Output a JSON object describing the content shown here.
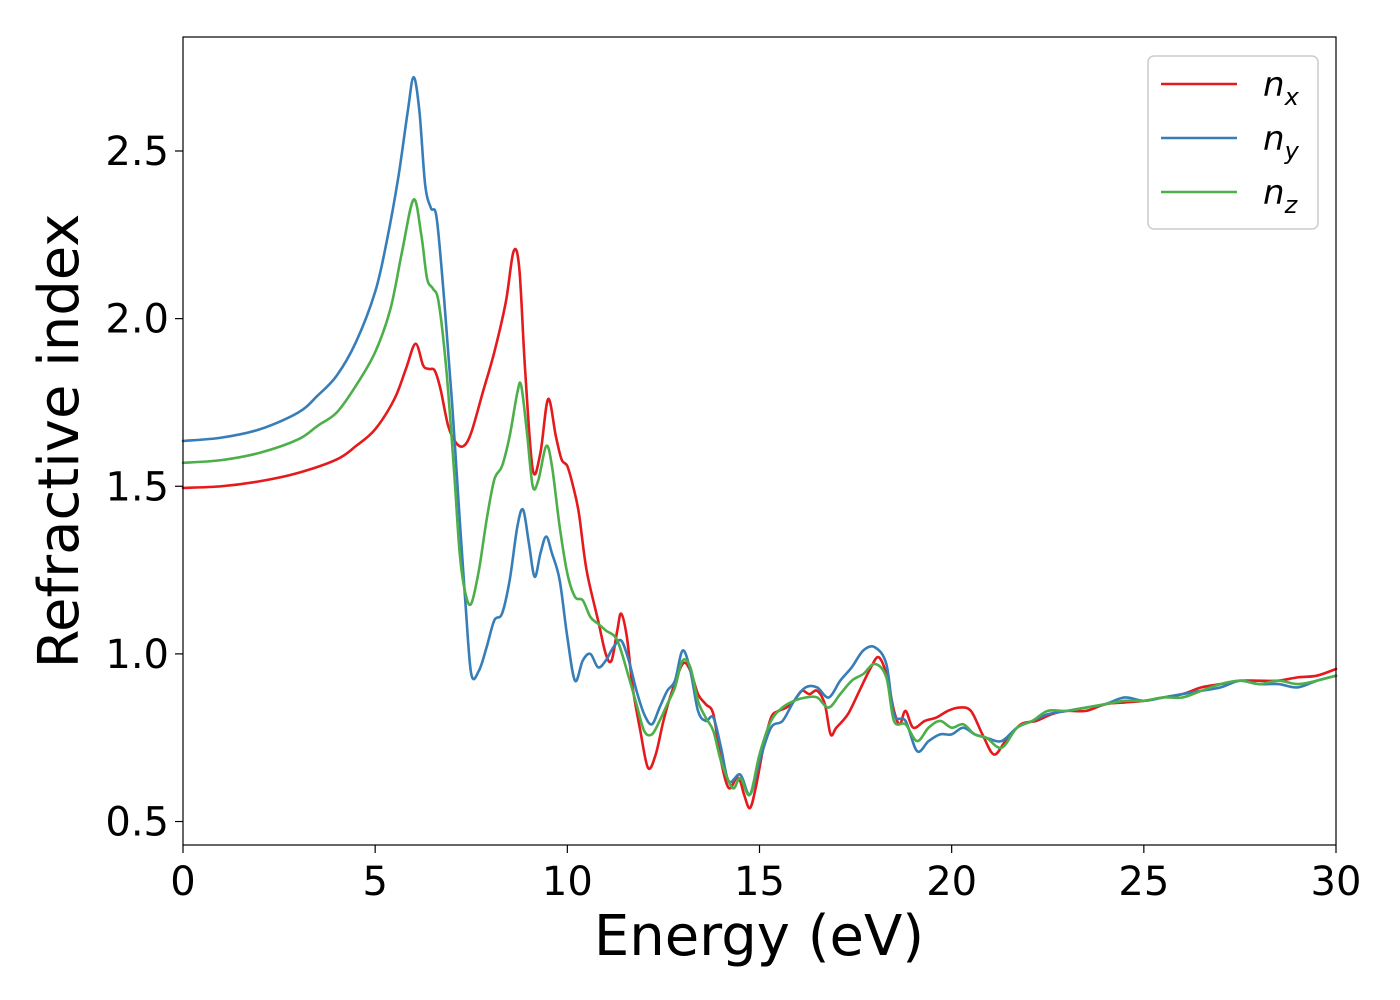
{
  "chart_data": {
    "type": "line",
    "title": "",
    "xlabel": "Energy (eV)",
    "ylabel": "Refractive index",
    "xlim": [
      0,
      30
    ],
    "ylim": [
      0.43,
      2.84
    ],
    "xticks": [
      "0",
      "5",
      "10",
      "15",
      "20",
      "25",
      "30"
    ],
    "yticks": [
      "0.5",
      "1.0",
      "1.5",
      "2.0",
      "2.5"
    ],
    "grid": false,
    "legend_position": "top-right",
    "series": [
      {
        "name": "n_x",
        "label_main": "n",
        "label_sub": "x",
        "color": "#e41a1c",
        "points": [
          [
            0,
            1.495
          ],
          [
            1,
            1.5
          ],
          [
            2,
            1.515
          ],
          [
            3,
            1.54
          ],
          [
            4,
            1.58
          ],
          [
            4.5,
            1.62
          ],
          [
            5,
            1.67
          ],
          [
            5.5,
            1.76
          ],
          [
            5.8,
            1.85
          ],
          [
            6.05,
            1.925
          ],
          [
            6.25,
            1.86
          ],
          [
            6.4,
            1.85
          ],
          [
            6.55,
            1.845
          ],
          [
            6.7,
            1.79
          ],
          [
            6.9,
            1.68
          ],
          [
            7.1,
            1.63
          ],
          [
            7.3,
            1.62
          ],
          [
            7.5,
            1.66
          ],
          [
            7.8,
            1.78
          ],
          [
            8.1,
            1.9
          ],
          [
            8.4,
            2.05
          ],
          [
            8.6,
            2.2
          ],
          [
            8.75,
            2.15
          ],
          [
            8.9,
            1.85
          ],
          [
            9.1,
            1.55
          ],
          [
            9.3,
            1.6
          ],
          [
            9.5,
            1.76
          ],
          [
            9.7,
            1.65
          ],
          [
            9.85,
            1.58
          ],
          [
            10.0,
            1.56
          ],
          [
            10.15,
            1.5
          ],
          [
            10.3,
            1.42
          ],
          [
            10.5,
            1.25
          ],
          [
            10.8,
            1.1
          ],
          [
            11.0,
            1.0
          ],
          [
            11.15,
            0.98
          ],
          [
            11.3,
            1.07
          ],
          [
            11.4,
            1.12
          ],
          [
            11.55,
            1.05
          ],
          [
            11.7,
            0.9
          ],
          [
            11.9,
            0.77
          ],
          [
            12.1,
            0.66
          ],
          [
            12.3,
            0.7
          ],
          [
            12.5,
            0.8
          ],
          [
            12.7,
            0.88
          ],
          [
            13.0,
            0.97
          ],
          [
            13.2,
            0.95
          ],
          [
            13.4,
            0.88
          ],
          [
            13.6,
            0.85
          ],
          [
            13.8,
            0.82
          ],
          [
            14.0,
            0.68
          ],
          [
            14.2,
            0.6
          ],
          [
            14.4,
            0.63
          ],
          [
            14.5,
            0.62
          ],
          [
            14.6,
            0.58
          ],
          [
            14.75,
            0.54
          ],
          [
            14.9,
            0.6
          ],
          [
            15.1,
            0.72
          ],
          [
            15.3,
            0.81
          ],
          [
            15.5,
            0.83
          ],
          [
            15.7,
            0.84
          ],
          [
            15.9,
            0.86
          ],
          [
            16.1,
            0.89
          ],
          [
            16.3,
            0.88
          ],
          [
            16.5,
            0.89
          ],
          [
            16.7,
            0.85
          ],
          [
            16.85,
            0.76
          ],
          [
            17.0,
            0.78
          ],
          [
            17.3,
            0.82
          ],
          [
            17.6,
            0.89
          ],
          [
            17.9,
            0.96
          ],
          [
            18.1,
            0.99
          ],
          [
            18.3,
            0.94
          ],
          [
            18.5,
            0.83
          ],
          [
            18.65,
            0.79
          ],
          [
            18.8,
            0.83
          ],
          [
            19.0,
            0.78
          ],
          [
            19.3,
            0.8
          ],
          [
            19.6,
            0.81
          ],
          [
            19.9,
            0.83
          ],
          [
            20.2,
            0.84
          ],
          [
            20.5,
            0.83
          ],
          [
            20.8,
            0.76
          ],
          [
            21.1,
            0.7
          ],
          [
            21.4,
            0.74
          ],
          [
            21.8,
            0.79
          ],
          [
            22.2,
            0.8
          ],
          [
            22.6,
            0.82
          ],
          [
            23.0,
            0.83
          ],
          [
            23.5,
            0.83
          ],
          [
            24.0,
            0.85
          ],
          [
            24.5,
            0.855
          ],
          [
            25.0,
            0.86
          ],
          [
            25.5,
            0.87
          ],
          [
            26.0,
            0.88
          ],
          [
            26.5,
            0.9
          ],
          [
            27.0,
            0.91
          ],
          [
            27.5,
            0.92
          ],
          [
            28.0,
            0.92
          ],
          [
            28.5,
            0.92
          ],
          [
            29.0,
            0.93
          ],
          [
            29.5,
            0.935
          ],
          [
            30,
            0.955
          ]
        ]
      },
      {
        "name": "n_y",
        "label_main": "n",
        "label_sub": "y",
        "color": "#377eb8",
        "points": [
          [
            0,
            1.635
          ],
          [
            1,
            1.645
          ],
          [
            2,
            1.67
          ],
          [
            3,
            1.72
          ],
          [
            3.5,
            1.77
          ],
          [
            4,
            1.83
          ],
          [
            4.5,
            1.93
          ],
          [
            5,
            2.08
          ],
          [
            5.3,
            2.23
          ],
          [
            5.6,
            2.42
          ],
          [
            5.85,
            2.62
          ],
          [
            6.0,
            2.72
          ],
          [
            6.15,
            2.62
          ],
          [
            6.3,
            2.4
          ],
          [
            6.45,
            2.33
          ],
          [
            6.6,
            2.3
          ],
          [
            6.8,
            2.05
          ],
          [
            7.0,
            1.75
          ],
          [
            7.2,
            1.4
          ],
          [
            7.35,
            1.15
          ],
          [
            7.5,
            0.94
          ],
          [
            7.7,
            0.95
          ],
          [
            7.9,
            1.02
          ],
          [
            8.1,
            1.1
          ],
          [
            8.3,
            1.12
          ],
          [
            8.5,
            1.22
          ],
          [
            8.7,
            1.38
          ],
          [
            8.85,
            1.43
          ],
          [
            9.0,
            1.33
          ],
          [
            9.15,
            1.23
          ],
          [
            9.3,
            1.3
          ],
          [
            9.45,
            1.35
          ],
          [
            9.6,
            1.3
          ],
          [
            9.8,
            1.22
          ],
          [
            10.0,
            1.05
          ],
          [
            10.2,
            0.92
          ],
          [
            10.4,
            0.98
          ],
          [
            10.6,
            1.0
          ],
          [
            10.8,
            0.96
          ],
          [
            11.0,
            0.98
          ],
          [
            11.2,
            1.02
          ],
          [
            11.4,
            1.04
          ],
          [
            11.6,
            0.98
          ],
          [
            11.8,
            0.89
          ],
          [
            12.0,
            0.82
          ],
          [
            12.2,
            0.79
          ],
          [
            12.4,
            0.84
          ],
          [
            12.6,
            0.89
          ],
          [
            12.8,
            0.92
          ],
          [
            13.0,
            1.01
          ],
          [
            13.2,
            0.95
          ],
          [
            13.4,
            0.83
          ],
          [
            13.6,
            0.8
          ],
          [
            13.8,
            0.81
          ],
          [
            14.0,
            0.72
          ],
          [
            14.2,
            0.62
          ],
          [
            14.5,
            0.64
          ],
          [
            14.75,
            0.58
          ],
          [
            15.0,
            0.68
          ],
          [
            15.3,
            0.78
          ],
          [
            15.6,
            0.8
          ],
          [
            15.9,
            0.86
          ],
          [
            16.2,
            0.9
          ],
          [
            16.5,
            0.9
          ],
          [
            16.8,
            0.87
          ],
          [
            17.1,
            0.92
          ],
          [
            17.4,
            0.96
          ],
          [
            17.7,
            1.01
          ],
          [
            18.0,
            1.02
          ],
          [
            18.3,
            0.97
          ],
          [
            18.5,
            0.82
          ],
          [
            18.8,
            0.8
          ],
          [
            19.1,
            0.71
          ],
          [
            19.4,
            0.74
          ],
          [
            19.7,
            0.76
          ],
          [
            20.0,
            0.76
          ],
          [
            20.3,
            0.78
          ],
          [
            20.6,
            0.76
          ],
          [
            20.9,
            0.75
          ],
          [
            21.3,
            0.74
          ],
          [
            21.7,
            0.78
          ],
          [
            22.1,
            0.8
          ],
          [
            22.5,
            0.82
          ],
          [
            23.0,
            0.83
          ],
          [
            23.5,
            0.84
          ],
          [
            24.0,
            0.85
          ],
          [
            24.5,
            0.87
          ],
          [
            25.0,
            0.86
          ],
          [
            25.5,
            0.87
          ],
          [
            26.0,
            0.88
          ],
          [
            26.5,
            0.89
          ],
          [
            27.0,
            0.9
          ],
          [
            27.5,
            0.92
          ],
          [
            28.0,
            0.91
          ],
          [
            28.5,
            0.91
          ],
          [
            29.0,
            0.9
          ],
          [
            29.5,
            0.92
          ],
          [
            30,
            0.935
          ]
        ]
      },
      {
        "name": "n_z",
        "label_main": "n",
        "label_sub": "z",
        "color": "#4daf4a",
        "points": [
          [
            0,
            1.57
          ],
          [
            1,
            1.578
          ],
          [
            2,
            1.6
          ],
          [
            3,
            1.64
          ],
          [
            3.5,
            1.68
          ],
          [
            4,
            1.72
          ],
          [
            4.5,
            1.8
          ],
          [
            5,
            1.9
          ],
          [
            5.4,
            2.03
          ],
          [
            5.7,
            2.2
          ],
          [
            6.0,
            2.355
          ],
          [
            6.2,
            2.25
          ],
          [
            6.35,
            2.12
          ],
          [
            6.5,
            2.09
          ],
          [
            6.65,
            2.05
          ],
          [
            6.85,
            1.85
          ],
          [
            7.05,
            1.55
          ],
          [
            7.2,
            1.3
          ],
          [
            7.35,
            1.18
          ],
          [
            7.5,
            1.15
          ],
          [
            7.7,
            1.25
          ],
          [
            7.9,
            1.4
          ],
          [
            8.1,
            1.52
          ],
          [
            8.3,
            1.56
          ],
          [
            8.5,
            1.65
          ],
          [
            8.7,
            1.78
          ],
          [
            8.8,
            1.8
          ],
          [
            8.95,
            1.66
          ],
          [
            9.1,
            1.5
          ],
          [
            9.25,
            1.52
          ],
          [
            9.45,
            1.62
          ],
          [
            9.6,
            1.56
          ],
          [
            9.8,
            1.38
          ],
          [
            10.0,
            1.24
          ],
          [
            10.2,
            1.17
          ],
          [
            10.4,
            1.16
          ],
          [
            10.6,
            1.11
          ],
          [
            10.8,
            1.09
          ],
          [
            11.0,
            1.07
          ],
          [
            11.3,
            1.04
          ],
          [
            11.6,
            0.93
          ],
          [
            11.8,
            0.85
          ],
          [
            12.0,
            0.77
          ],
          [
            12.2,
            0.76
          ],
          [
            12.4,
            0.8
          ],
          [
            12.6,
            0.85
          ],
          [
            12.8,
            0.9
          ],
          [
            13.0,
            0.98
          ],
          [
            13.2,
            0.96
          ],
          [
            13.4,
            0.86
          ],
          [
            13.6,
            0.81
          ],
          [
            13.8,
            0.77
          ],
          [
            14.0,
            0.68
          ],
          [
            14.3,
            0.6
          ],
          [
            14.5,
            0.63
          ],
          [
            14.75,
            0.58
          ],
          [
            15.0,
            0.7
          ],
          [
            15.3,
            0.8
          ],
          [
            15.6,
            0.84
          ],
          [
            15.9,
            0.86
          ],
          [
            16.2,
            0.87
          ],
          [
            16.5,
            0.87
          ],
          [
            16.8,
            0.84
          ],
          [
            17.1,
            0.88
          ],
          [
            17.4,
            0.92
          ],
          [
            17.7,
            0.94
          ],
          [
            18.0,
            0.97
          ],
          [
            18.3,
            0.93
          ],
          [
            18.5,
            0.8
          ],
          [
            18.8,
            0.79
          ],
          [
            19.1,
            0.74
          ],
          [
            19.4,
            0.78
          ],
          [
            19.7,
            0.8
          ],
          [
            20.0,
            0.78
          ],
          [
            20.3,
            0.79
          ],
          [
            20.6,
            0.76
          ],
          [
            20.9,
            0.75
          ],
          [
            21.3,
            0.72
          ],
          [
            21.7,
            0.78
          ],
          [
            22.1,
            0.8
          ],
          [
            22.5,
            0.83
          ],
          [
            23.0,
            0.83
          ],
          [
            23.5,
            0.84
          ],
          [
            24.0,
            0.85
          ],
          [
            24.5,
            0.86
          ],
          [
            25.0,
            0.86
          ],
          [
            25.5,
            0.87
          ],
          [
            26.0,
            0.87
          ],
          [
            26.5,
            0.89
          ],
          [
            27.0,
            0.91
          ],
          [
            27.5,
            0.92
          ],
          [
            28.0,
            0.91
          ],
          [
            28.5,
            0.92
          ],
          [
            29.0,
            0.91
          ],
          [
            29.5,
            0.92
          ],
          [
            30,
            0.935
          ]
        ]
      }
    ]
  }
}
